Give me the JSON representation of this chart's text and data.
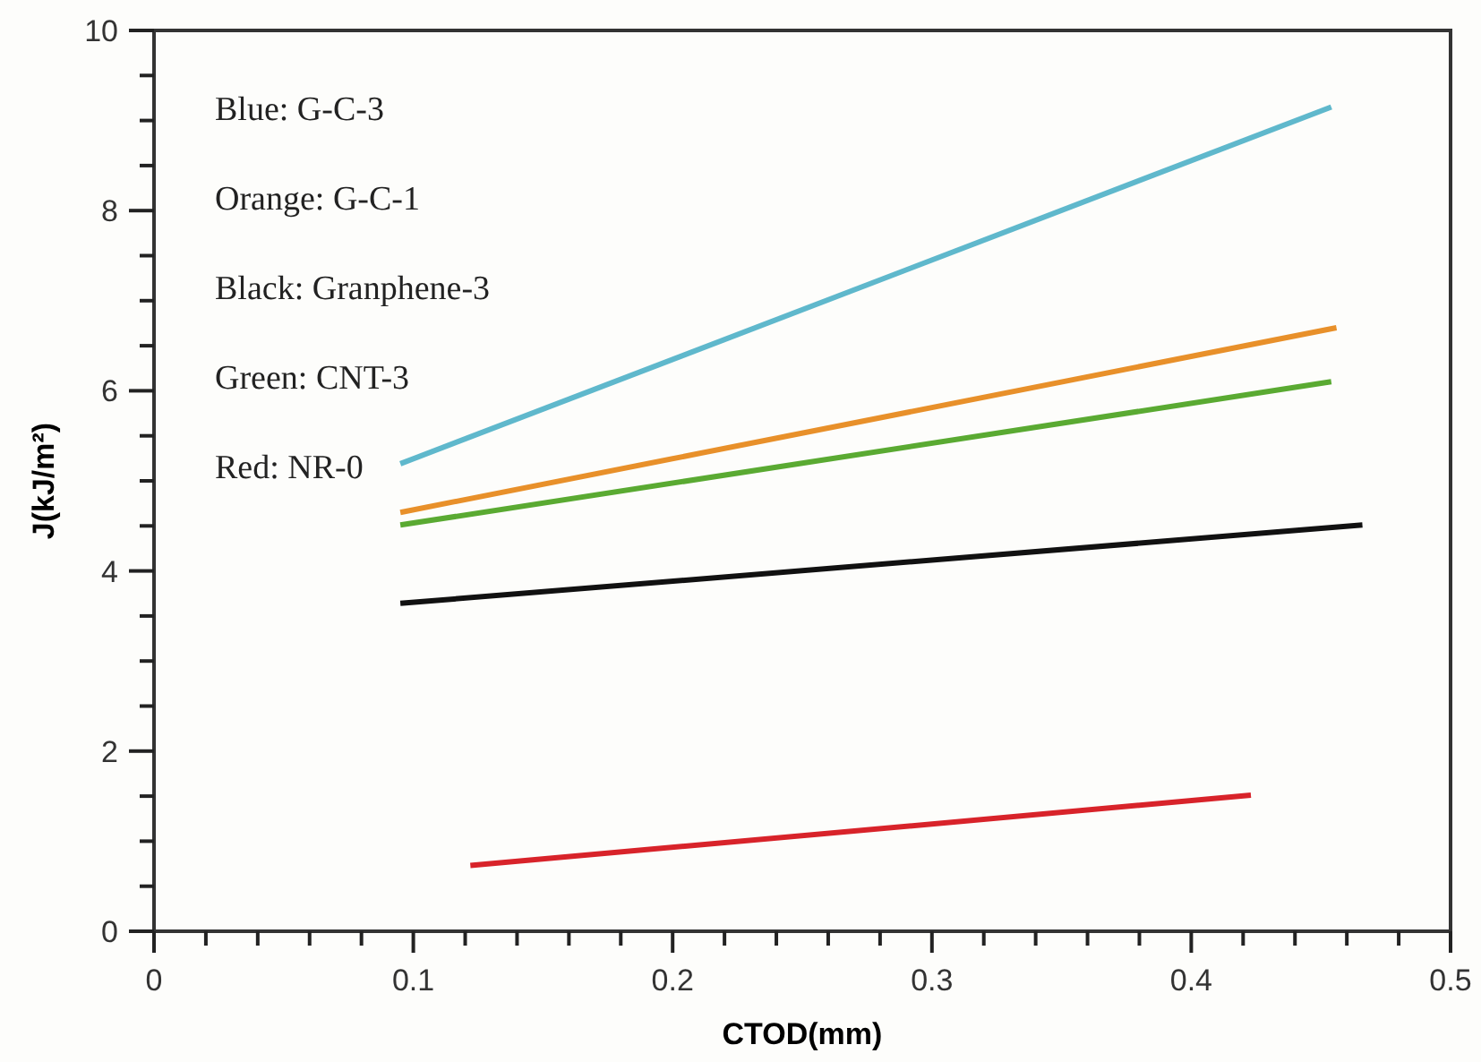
{
  "chart_data": {
    "type": "line",
    "xlabel": "CTOD(mm)",
    "ylabel": "J(kJ/m²)",
    "xlim": [
      0,
      0.5
    ],
    "ylim": [
      0,
      10
    ],
    "xticks": [
      0,
      {
        "value": 0.02,
        "label": null
      },
      {
        "value": 0.04,
        "label": null
      },
      {
        "value": 0.06,
        "label": null
      },
      {
        "value": 0.08,
        "label": null
      },
      0.1,
      {
        "value": 0.12,
        "label": null
      },
      {
        "value": 0.14,
        "label": null
      },
      {
        "value": 0.16,
        "label": null
      },
      {
        "value": 0.18,
        "label": null
      },
      0.2,
      {
        "value": 0.22,
        "label": null
      },
      {
        "value": 0.24,
        "label": null
      },
      {
        "value": 0.26,
        "label": null
      },
      {
        "value": 0.28,
        "label": null
      },
      0.3,
      {
        "value": 0.32,
        "label": null
      },
      {
        "value": 0.34,
        "label": null
      },
      {
        "value": 0.36,
        "label": null
      },
      {
        "value": 0.38,
        "label": null
      },
      0.4,
      {
        "value": 0.42,
        "label": null
      },
      {
        "value": 0.44,
        "label": null
      },
      {
        "value": 0.46,
        "label": null
      },
      {
        "value": 0.48,
        "label": null
      },
      0.5
    ],
    "yticks": [
      0,
      {
        "value": 0.5,
        "label": null
      },
      {
        "value": 1,
        "label": null
      },
      {
        "value": 1.5,
        "label": null
      },
      2,
      {
        "value": 2.5,
        "label": null
      },
      {
        "value": 3,
        "label": null
      },
      {
        "value": 3.5,
        "label": null
      },
      4,
      {
        "value": 4.5,
        "label": null
      },
      {
        "value": 5,
        "label": null
      },
      {
        "value": 5.5,
        "label": null
      },
      6,
      {
        "value": 6.5,
        "label": null
      },
      {
        "value": 7,
        "label": null
      },
      {
        "value": 7.5,
        "label": null
      },
      8,
      {
        "value": 8.5,
        "label": null
      },
      {
        "value": 9,
        "label": null
      },
      {
        "value": 9.5,
        "label": null
      },
      10
    ],
    "marker": "none",
    "line_style": "solid",
    "grid": false,
    "series": [
      {
        "color": "#5fb8cc",
        "x": [
          0.095,
          0.454
        ],
        "values": [
          5.19,
          9.15
        ]
      },
      {
        "color": "#e8902a",
        "x": [
          0.095,
          0.456
        ],
        "values": [
          4.65,
          6.7
        ]
      },
      {
        "color": "#5aaa32",
        "x": [
          0.095,
          0.454
        ],
        "values": [
          4.51,
          6.1
        ]
      },
      {
        "color": "#111111",
        "x": [
          0.095,
          0.466
        ],
        "values": [
          3.64,
          4.51
        ]
      },
      {
        "color": "#d8232a",
        "x": [
          0.122,
          0.423
        ],
        "values": [
          0.73,
          1.51
        ]
      }
    ],
    "annotations": [
      "Blue: G-C-3",
      "Orange: G-C-1",
      "Black: Granphene-3",
      "Green: CNT-3",
      "Red: NR-0"
    ]
  }
}
